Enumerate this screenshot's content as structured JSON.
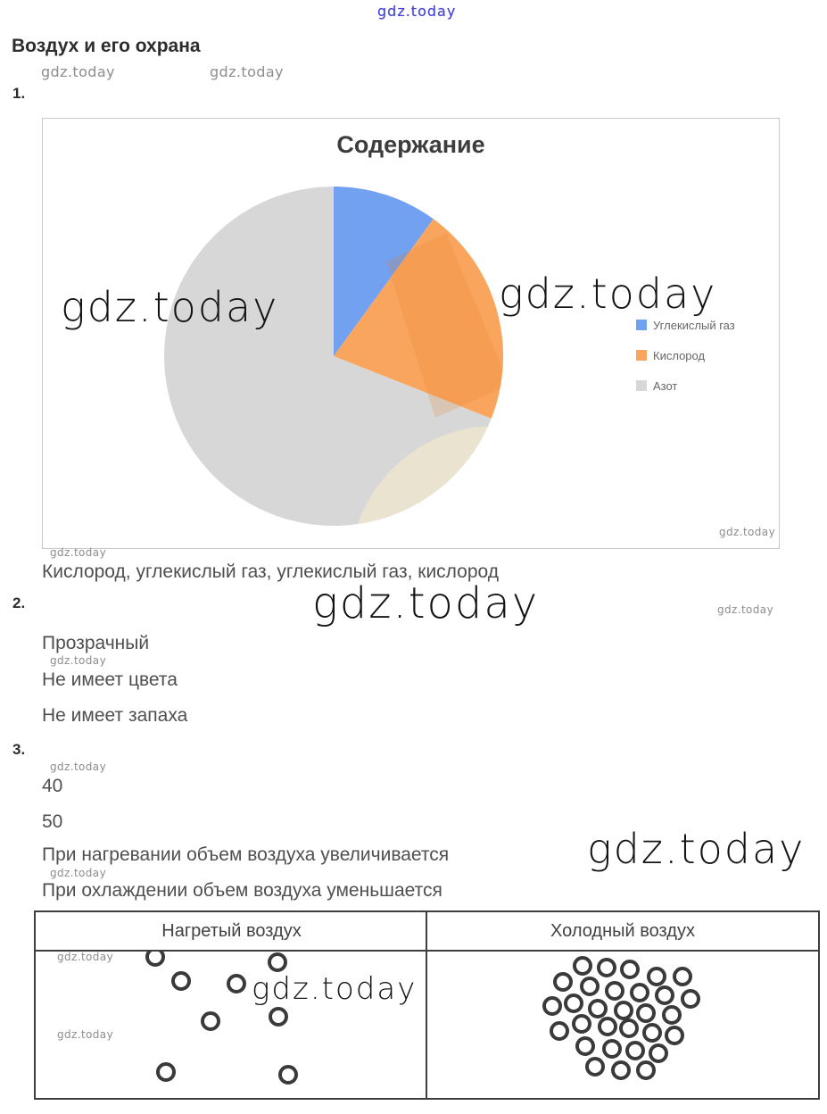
{
  "watermark": {
    "text": "gdz.today"
  },
  "page": {
    "title": "Воздух и его охрана",
    "section1_label": "1.",
    "section2_label": "2.",
    "section3_label": "3.",
    "answer1": "Кислород, углекислый газ, углекислый газ, кислород",
    "answer2": [
      "Прозрачный",
      "Не имеет цвета",
      "Не имеет запаха"
    ],
    "answer3": [
      "40",
      "50",
      "При нагревании объем воздуха увеличивается",
      "При охлаждении объем воздуха уменьшается"
    ]
  },
  "chart_data": {
    "type": "pie",
    "title": "Содержание",
    "labels": [
      "Углекислый газ",
      "Кислород",
      "Азот"
    ],
    "values": [
      10,
      21,
      69
    ],
    "unit": "percent",
    "colors": [
      "#72a1f1",
      "#f9a55e",
      "#d7d7d7"
    ],
    "start_angle_deg": 0,
    "direction": "clockwise",
    "legend_position": "right",
    "legend_text_color": "#666666"
  },
  "table": {
    "headers": [
      "Нагретый воздух",
      "Холодный воздух"
    ],
    "molecule_color": "#3a3a3a",
    "molecule_diameter": 22,
    "hot_molecules": [
      [
        172,
        1070
      ],
      [
        309,
        1076
      ],
      [
        201,
        1097
      ],
      [
        263,
        1100
      ],
      [
        310,
        1137
      ],
      [
        234,
        1142
      ],
      [
        184,
        1199
      ],
      [
        321,
        1202
      ]
    ],
    "cold_molecules": [
      [
        651,
        1080
      ],
      [
        678,
        1082
      ],
      [
        704,
        1084
      ],
      [
        734,
        1092
      ],
      [
        763,
        1092
      ],
      [
        629,
        1098
      ],
      [
        659,
        1103
      ],
      [
        687,
        1108
      ],
      [
        715,
        1110
      ],
      [
        743,
        1113
      ],
      [
        772,
        1117
      ],
      [
        617,
        1125
      ],
      [
        641,
        1122
      ],
      [
        668,
        1128
      ],
      [
        697,
        1130
      ],
      [
        722,
        1133
      ],
      [
        751,
        1135
      ],
      [
        625,
        1153
      ],
      [
        650,
        1145
      ],
      [
        679,
        1148
      ],
      [
        703,
        1150
      ],
      [
        729,
        1155
      ],
      [
        754,
        1158
      ],
      [
        654,
        1170
      ],
      [
        684,
        1173
      ],
      [
        710,
        1175
      ],
      [
        736,
        1178
      ],
      [
        665,
        1193
      ],
      [
        694,
        1197
      ],
      [
        722,
        1197
      ]
    ]
  },
  "colors": {
    "chart_border": "#c8c8c8",
    "table_border": "#3e3e3e",
    "watermark_blue": "#4444cc",
    "watermark_gray": "#8d8d8d",
    "watermark_black": "#141414",
    "beige_ring": "#e9e3d0"
  }
}
